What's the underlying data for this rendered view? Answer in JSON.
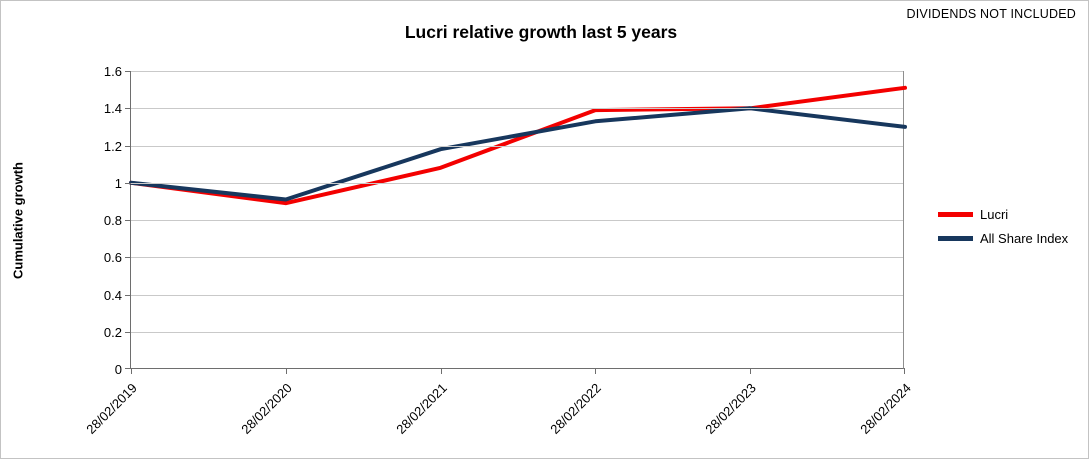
{
  "annotation": {
    "text": "DIVIDENDS NOT INCLUDED"
  },
  "chart_data": {
    "type": "line",
    "title": "Lucri relative growth last 5 years",
    "xlabel": "",
    "ylabel": "Cumulative growth",
    "categories": [
      "28/02/2019",
      "28/02/2020",
      "28/02/2021",
      "28/02/2022",
      "28/02/2023",
      "28/02/2024"
    ],
    "series": [
      {
        "name": "Lucri",
        "color": "#f30000",
        "values": [
          1.0,
          0.89,
          1.08,
          1.39,
          1.4,
          1.51
        ]
      },
      {
        "name": "All Share Index",
        "color": "#17375d",
        "values": [
          1.0,
          0.91,
          1.18,
          1.33,
          1.4,
          1.3
        ]
      }
    ],
    "ylim": [
      0,
      1.6
    ],
    "ytick_step": 0.2,
    "ytick_labels": [
      "0",
      "0.2",
      "0.4",
      "0.6",
      "0.8",
      "1",
      "1.2",
      "1.4",
      "1.6"
    ],
    "grid": true,
    "legend_position": "right",
    "colors": {
      "gridline": "#c9c9c9",
      "axis": "#6e6e6e",
      "plot_border": "#8f8f8f",
      "text": "#000000"
    }
  }
}
